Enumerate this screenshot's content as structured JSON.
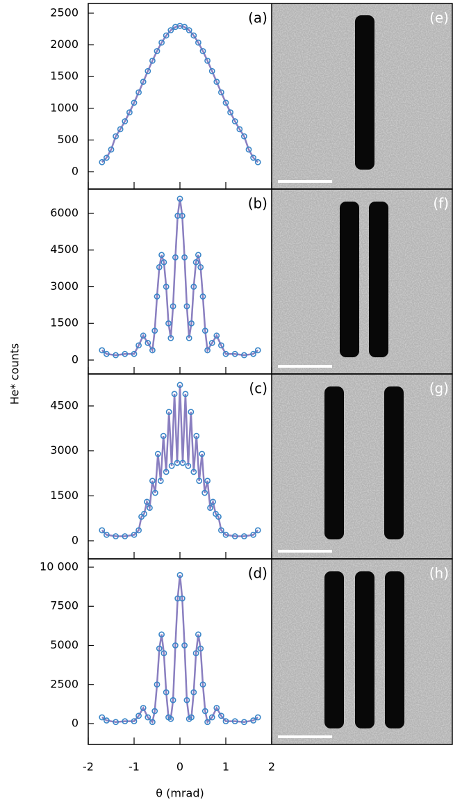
{
  "chart_data": [
    {
      "type": "scatter",
      "panel_label": "(a)",
      "ylabel": "He* counts",
      "x": [
        -1.7,
        -1.6,
        -1.5,
        -1.4,
        -1.3,
        -1.2,
        -1.1,
        -1.0,
        -0.9,
        -0.8,
        -0.7,
        -0.6,
        -0.5,
        -0.4,
        -0.3,
        -0.2,
        -0.1,
        0,
        0.1,
        0.2,
        0.3,
        0.4,
        0.5,
        0.6,
        0.7,
        0.8,
        0.9,
        1.0,
        1.1,
        1.2,
        1.3,
        1.4,
        1.5,
        1.6,
        1.7
      ],
      "values": [
        150,
        220,
        350,
        558,
        670,
        795,
        936,
        1088,
        1251,
        1418,
        1587,
        1750,
        1902,
        2036,
        2148,
        2231,
        2283,
        2300,
        2283,
        2231,
        2148,
        2036,
        1902,
        1750,
        1587,
        1418,
        1251,
        1088,
        936,
        795,
        670,
        558,
        350,
        220,
        150
      ],
      "marker_color": "#3a86c8",
      "line_color": "#8a7fc0",
      "xlim": [
        -2,
        2
      ],
      "xticks": [
        -2,
        -1,
        0,
        1,
        2
      ],
      "ylim": [
        -274,
        2653
      ],
      "yticks": [
        0,
        500,
        1000,
        1500,
        2000,
        2500
      ]
    },
    {
      "type": "scatter",
      "panel_label": "(b)",
      "x": [
        -1.7,
        -1.6,
        -1.4,
        -1.2,
        -1.0,
        -0.9,
        -0.8,
        -0.7,
        -0.6,
        -0.55,
        -0.5,
        -0.45,
        -0.4,
        -0.35,
        -0.3,
        -0.25,
        -0.2,
        -0.15,
        -0.1,
        -0.05,
        0,
        0.05,
        0.1,
        0.15,
        0.2,
        0.25,
        0.3,
        0.35,
        0.4,
        0.45,
        0.5,
        0.55,
        0.6,
        0.7,
        0.8,
        0.9,
        1.0,
        1.2,
        1.4,
        1.6,
        1.7
      ],
      "values": [
        400,
        250,
        200,
        250,
        250,
        600,
        1000,
        700,
        400,
        1200,
        2600,
        3800,
        4300,
        4000,
        3000,
        1500,
        900,
        2200,
        4200,
        5900,
        6600,
        5900,
        4200,
        2200,
        900,
        1500,
        3000,
        4000,
        4300,
        3800,
        2600,
        1200,
        400,
        700,
        1000,
        600,
        250,
        250,
        200,
        250,
        400
      ],
      "marker_color": "#3a86c8",
      "line_color": "#8a7fc0",
      "xlim": [
        -2,
        2
      ],
      "xticks": [
        -2,
        -1,
        0,
        1,
        2
      ],
      "ylim": [
        -569,
        6995
      ],
      "yticks": [
        0,
        1500,
        3000,
        4500,
        6000
      ]
    },
    {
      "type": "scatter",
      "panel_label": "(c)",
      "x": [
        -1.7,
        -1.6,
        -1.4,
        -1.2,
        -1.0,
        -0.9,
        -0.84,
        -0.78,
        -0.72,
        -0.66,
        -0.6,
        -0.54,
        -0.48,
        -0.42,
        -0.36,
        -0.3,
        -0.24,
        -0.18,
        -0.12,
        -0.06,
        0,
        0.06,
        0.12,
        0.18,
        0.24,
        0.3,
        0.36,
        0.42,
        0.48,
        0.54,
        0.6,
        0.66,
        0.72,
        0.78,
        0.84,
        0.9,
        1.0,
        1.2,
        1.4,
        1.6,
        1.7
      ],
      "values": [
        350,
        200,
        150,
        150,
        200,
        350,
        800,
        900,
        1300,
        1100,
        2000,
        1600,
        2900,
        2000,
        3500,
        2300,
        4300,
        2500,
        4900,
        2600,
        5200,
        2600,
        4900,
        2500,
        4300,
        2300,
        3500,
        2000,
        2900,
        1600,
        2000,
        1100,
        1300,
        900,
        800,
        350,
        200,
        150,
        150,
        200,
        350
      ],
      "marker_color": "#3a86c8",
      "line_color": "#8a7fc0",
      "xlim": [
        -2,
        2
      ],
      "xticks": [
        -2,
        -1,
        0,
        1,
        2
      ],
      "ylim": [
        -603,
        5567
      ],
      "yticks": [
        0,
        1500,
        3000,
        4500
      ]
    },
    {
      "type": "scatter",
      "panel_label": "(d)",
      "xlabel": "θ (mrad)",
      "x": [
        -1.7,
        -1.6,
        -1.4,
        -1.2,
        -1.0,
        -0.9,
        -0.8,
        -0.7,
        -0.6,
        -0.55,
        -0.5,
        -0.45,
        -0.4,
        -0.35,
        -0.3,
        -0.25,
        -0.2,
        -0.15,
        -0.1,
        -0.05,
        0,
        0.05,
        0.1,
        0.15,
        0.2,
        0.25,
        0.3,
        0.35,
        0.4,
        0.45,
        0.5,
        0.55,
        0.6,
        0.7,
        0.8,
        0.9,
        1.0,
        1.2,
        1.4,
        1.6,
        1.7
      ],
      "values": [
        400,
        200,
        100,
        150,
        150,
        500,
        1000,
        400,
        100,
        800,
        2500,
        4800,
        5700,
        4500,
        2000,
        400,
        300,
        1500,
        5000,
        8000,
        9500,
        8000,
        5000,
        1500,
        300,
        400,
        2000,
        4500,
        5700,
        4800,
        2500,
        800,
        100,
        400,
        1000,
        500,
        150,
        150,
        100,
        200,
        400
      ],
      "marker_color": "#3a86c8",
      "line_color": "#8a7fc0",
      "xlim": [
        -2,
        2
      ],
      "xticks": [
        -2,
        -1,
        0,
        1,
        2
      ],
      "ylim": [
        -1333,
        10533
      ],
      "yticks": [
        0,
        2500,
        5000,
        7500,
        {
          "value": 10000,
          "label": "10 000"
        }
      ]
    }
  ],
  "images": [
    {
      "label": "(e)"
    },
    {
      "label": "(f)"
    },
    {
      "label": "(g)"
    },
    {
      "label": "(h)"
    }
  ]
}
